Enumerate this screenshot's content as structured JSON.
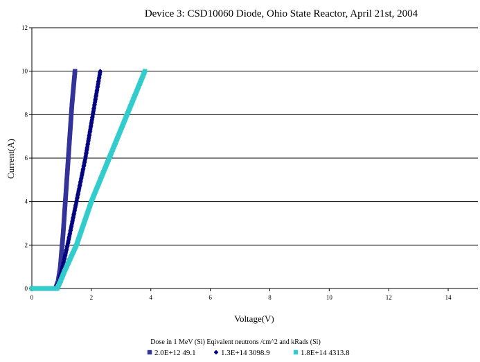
{
  "chart_data": {
    "type": "scatter",
    "title": "Device 3: CSD10060 Diode, Ohio State Reactor, April 21st, 2004",
    "xlabel": "Voltage(V)",
    "ylabel": "Current(A)",
    "xlim": [
      0,
      15
    ],
    "ylim": [
      0,
      12
    ],
    "x_ticks": [
      "0",
      "2",
      "4",
      "6",
      "8",
      "10",
      "12",
      "14"
    ],
    "y_ticks": [
      "0",
      "2",
      "4",
      "6",
      "8",
      "10",
      "12"
    ],
    "grid": "horizontal",
    "legend_position": "bottom",
    "legend_title": "Dose  in 1 MeV (Si) Eqivalent neutrons /cm^2 and kRads (Si)",
    "series": [
      {
        "name": "2.0E+12 49.1",
        "color": "#333399",
        "marker": "square",
        "points": [
          [
            0,
            0
          ],
          [
            0.3,
            0
          ],
          [
            0.6,
            0
          ],
          [
            0.8,
            0
          ],
          [
            0.88,
            0.3
          ],
          [
            0.95,
            0.9
          ],
          [
            1.05,
            2.5
          ],
          [
            1.15,
            4.5
          ],
          [
            1.25,
            6.5
          ],
          [
            1.35,
            8.5
          ],
          [
            1.45,
            10.0
          ]
        ]
      },
      {
        "name": "1.3E+14 3098.9",
        "color": "#000080",
        "marker": "diamond",
        "points": [
          [
            0,
            0
          ],
          [
            0.3,
            0
          ],
          [
            0.6,
            0
          ],
          [
            0.8,
            0
          ],
          [
            0.9,
            0.3
          ],
          [
            1.0,
            0.8
          ],
          [
            1.2,
            2.0
          ],
          [
            1.5,
            4.0
          ],
          [
            1.8,
            6.0
          ],
          [
            2.05,
            8.0
          ],
          [
            2.3,
            10.0
          ]
        ]
      },
      {
        "name": "1.8E+14 4313.8",
        "color": "#33CCCC",
        "marker": "square",
        "points": [
          [
            0,
            0
          ],
          [
            0.3,
            0
          ],
          [
            0.6,
            0
          ],
          [
            0.85,
            0
          ],
          [
            0.95,
            0.3
          ],
          [
            1.1,
            0.8
          ],
          [
            1.5,
            2.0
          ],
          [
            2.0,
            4.0
          ],
          [
            2.6,
            6.0
          ],
          [
            3.2,
            8.0
          ],
          [
            3.8,
            10.0
          ]
        ]
      }
    ]
  }
}
